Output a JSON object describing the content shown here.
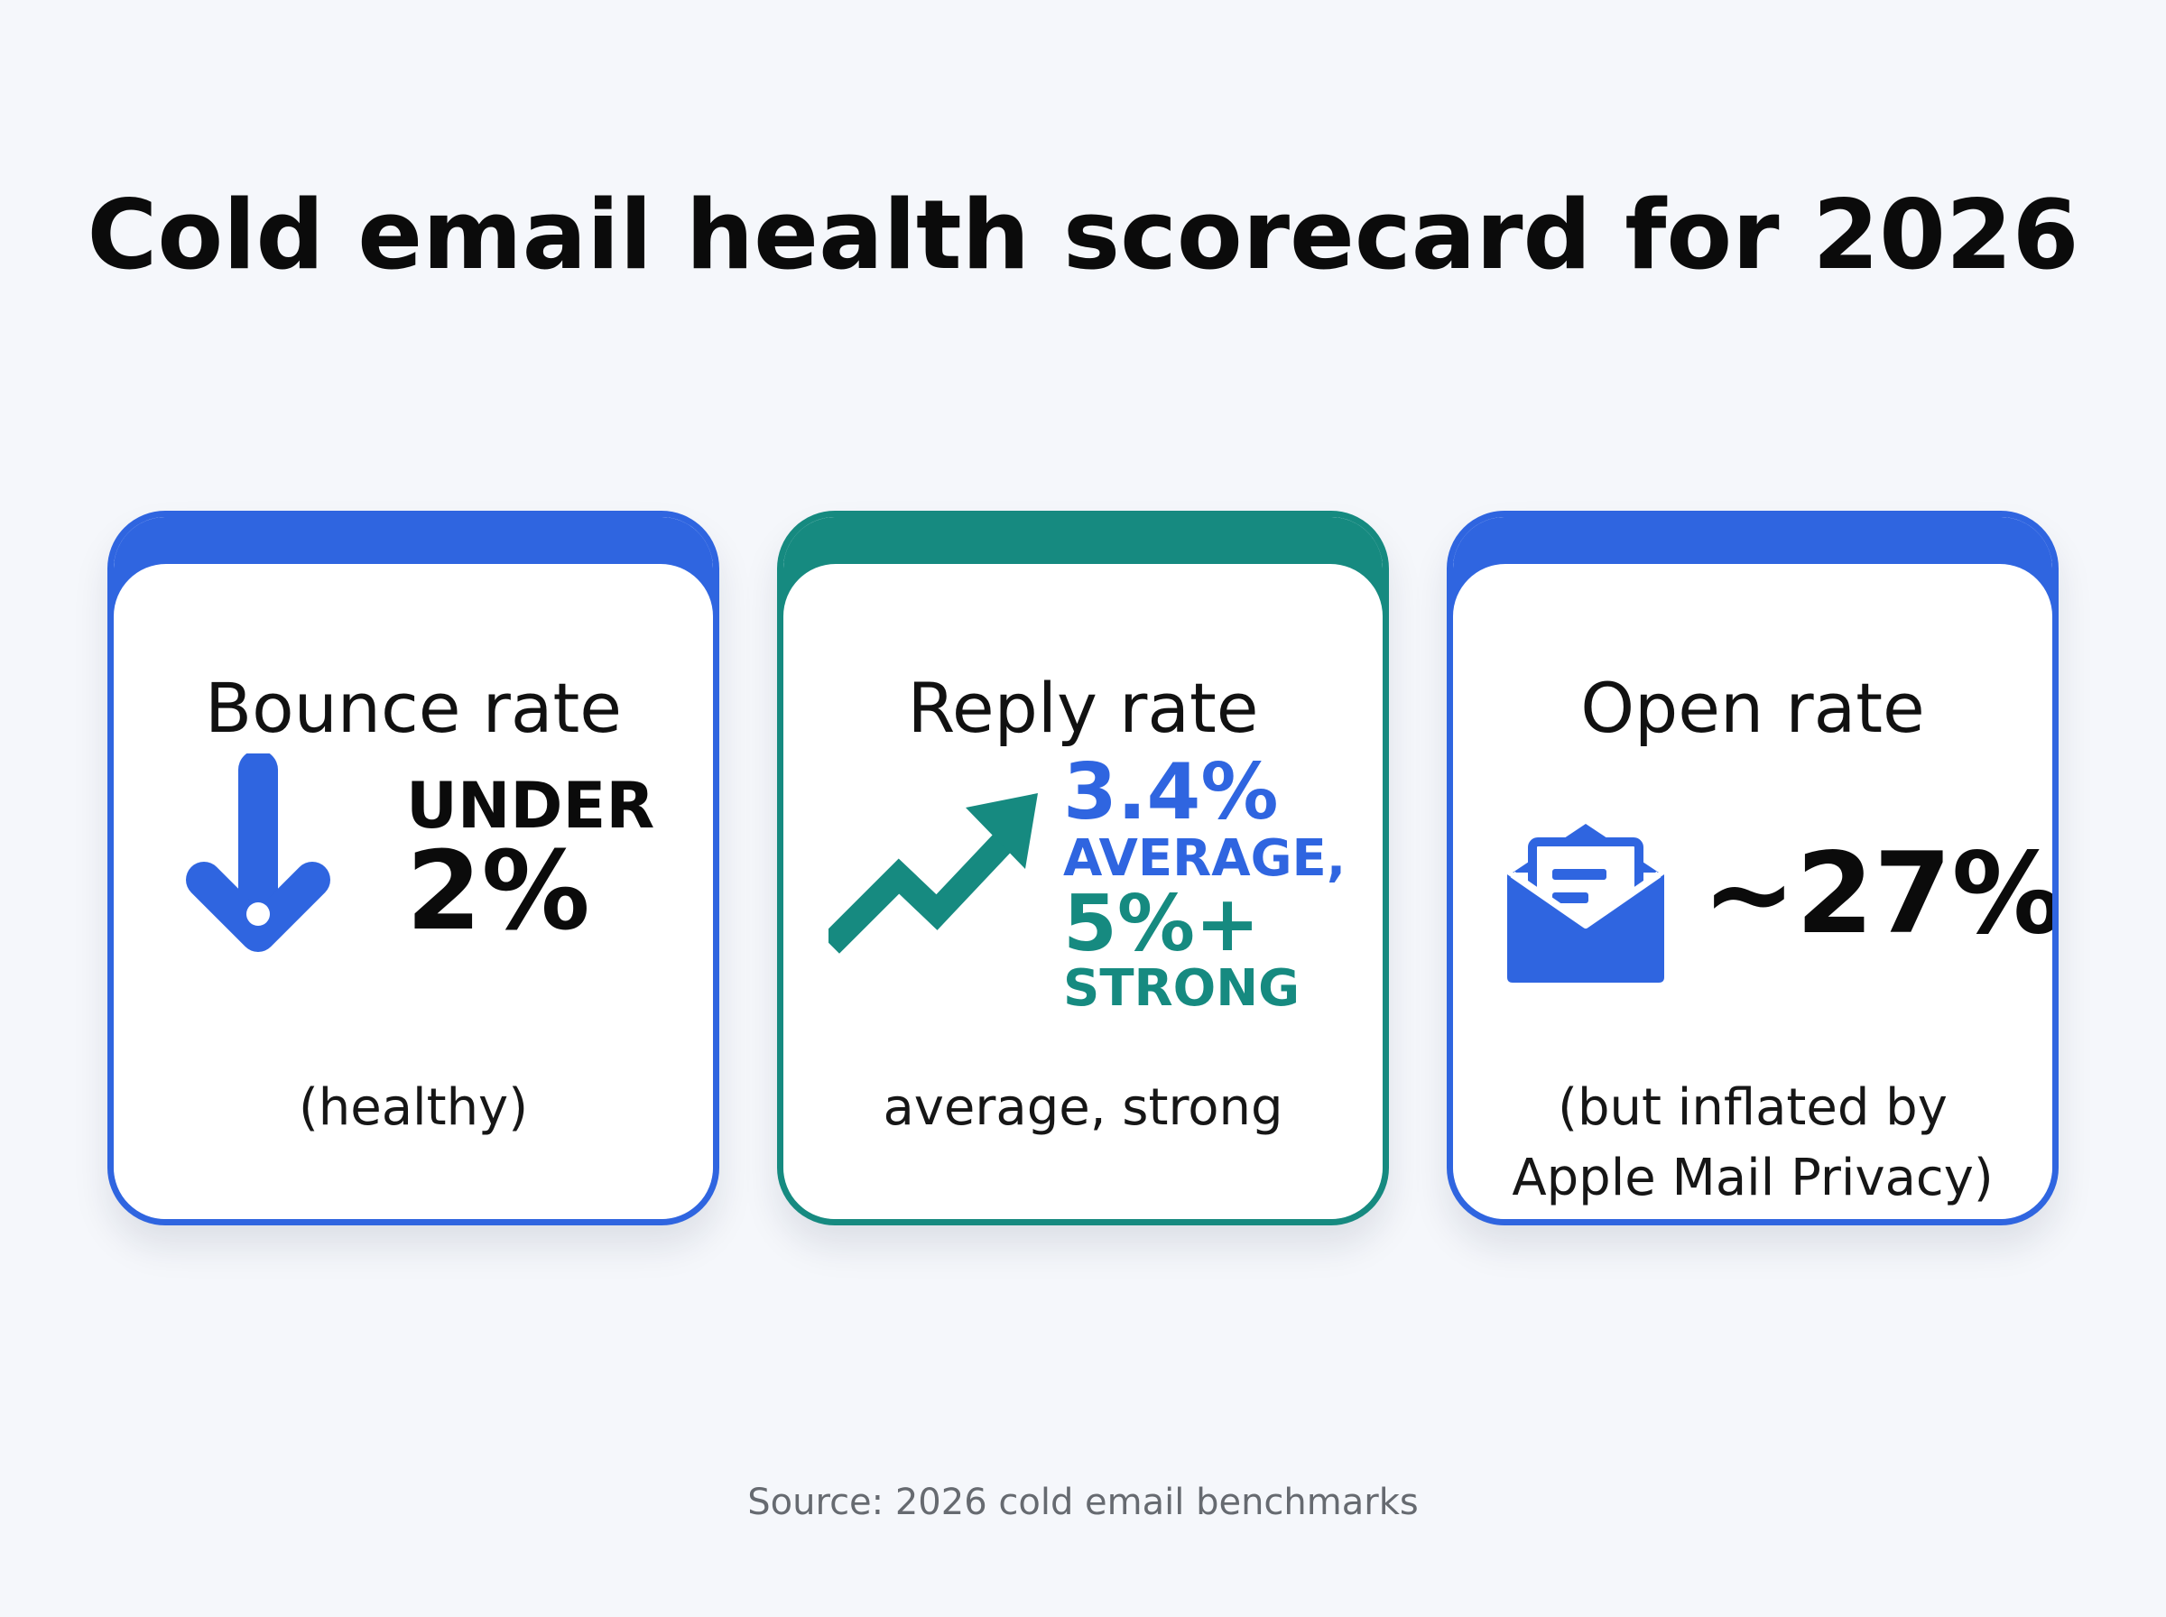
{
  "title": "Cold email health scorecard for 2026",
  "colors": {
    "blue": "#2f65e0",
    "teal": "#168a80",
    "text": "#111111",
    "background": "#f5f7fb"
  },
  "cards": [
    {
      "label": "Bounce rate",
      "icon": "arrow-down-icon",
      "value_prefix": "UNDER",
      "value": "2%",
      "note": "(healthy)"
    },
    {
      "label": "Reply rate",
      "icon": "trend-up-arrow-icon",
      "value_line1": "3.4%",
      "value_line2": "AVERAGE,",
      "value_line3": "5%+",
      "value_line4": "STRONG",
      "note": "average, strong"
    },
    {
      "label": "Open rate",
      "icon": "open-envelope-icon",
      "value": "~27%",
      "note_line1": "(but inflated by",
      "note_line2": "Apple Mail Privacy)"
    }
  ],
  "source": "Source: 2026 cold email benchmarks"
}
